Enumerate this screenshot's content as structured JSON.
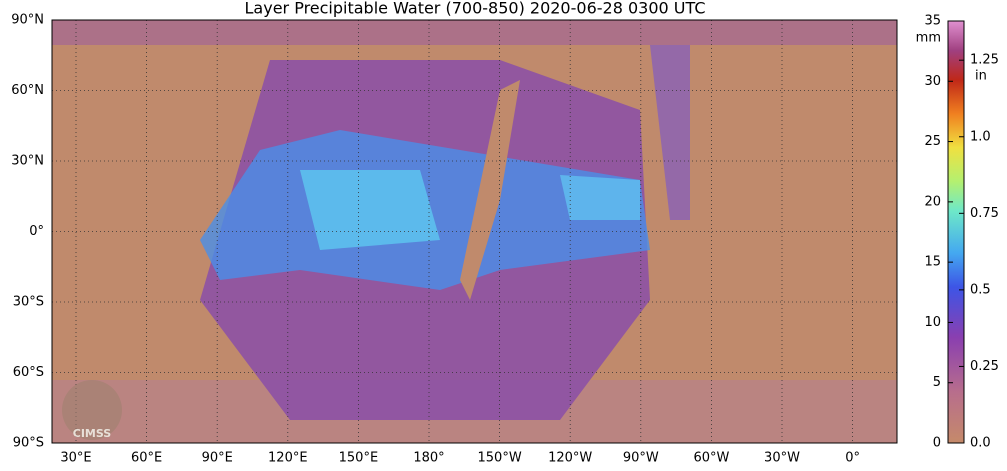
{
  "title": "Layer Precipitable Water (700-850)  2020-06-28 0300 UTC",
  "map": {
    "lat_labels": [
      "90°N",
      "60°N",
      "30°N",
      "0°",
      "30°S",
      "60°S",
      "90°S"
    ],
    "lon_labels": [
      "30°E",
      "60°E",
      "90°E",
      "120°E",
      "150°E",
      "180°",
      "150°W",
      "120°W",
      "90°W",
      "60°W",
      "30°W",
      "0°"
    ]
  },
  "colorbar": {
    "mm_unit": "mm",
    "in_unit": "in",
    "mm_lim": [
      0,
      35
    ],
    "in_lim": [
      0,
      1.378
    ],
    "mm_ticks": [
      0,
      5,
      10,
      15,
      20,
      25,
      30,
      35
    ],
    "in_ticks": [
      {
        "value": 0,
        "label": "0.0"
      },
      0.25,
      0.5,
      0.75,
      {
        "value": 1,
        "label": "1.0"
      },
      1.25
    ]
  },
  "logo": "CIMSS"
}
